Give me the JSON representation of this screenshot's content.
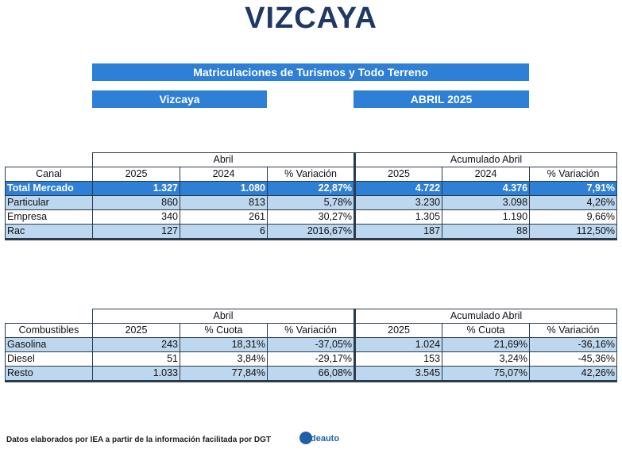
{
  "title": "VIZCAYA",
  "banner_main": "Matriculaciones de Turismos y Todo Terreno",
  "banner_region": "Vizcaya",
  "banner_period": "ABRIL 2025",
  "table1": {
    "group_abril": "Abril",
    "group_acum": "Acumulado Abril",
    "headers": [
      "Canal",
      "2025",
      "2024",
      "% Variación",
      "2025",
      "2024",
      "% Variación"
    ],
    "rows": [
      [
        "Total Mercado",
        "1.327",
        "1.080",
        "22,87%",
        "4.722",
        "4.376",
        "7,91%"
      ],
      [
        "Particular",
        "860",
        "813",
        "5,78%",
        "3.230",
        "3.098",
        "4,26%"
      ],
      [
        "Empresa",
        "340",
        "261",
        "30,27%",
        "1.305",
        "1.190",
        "9,66%"
      ],
      [
        "Rac",
        "127",
        "6",
        "2016,67%",
        "187",
        "88",
        "112,50%"
      ]
    ]
  },
  "table2": {
    "group_abril": "Abril",
    "group_acum": "Acumulado Abril",
    "headers": [
      "Combustibles",
      "2025",
      "% Cuota",
      "% Variación",
      "2025",
      "% Cuota",
      "% Variación"
    ],
    "rows": [
      [
        "Gasolina",
        "243",
        "18,31%",
        "-37,05%",
        "1.024",
        "21,69%",
        "-36,16%"
      ],
      [
        "Diesel",
        "51",
        "3,84%",
        "-29,17%",
        "153",
        "3,24%",
        "-45,36%"
      ],
      [
        "Resto",
        "1.033",
        "77,84%",
        "66,08%",
        "3.545",
        "75,07%",
        "42,26%"
      ]
    ]
  },
  "footer": "Datos elaborados por IEA a partir de la información facilitada por DGT",
  "logo_text": "deauto"
}
